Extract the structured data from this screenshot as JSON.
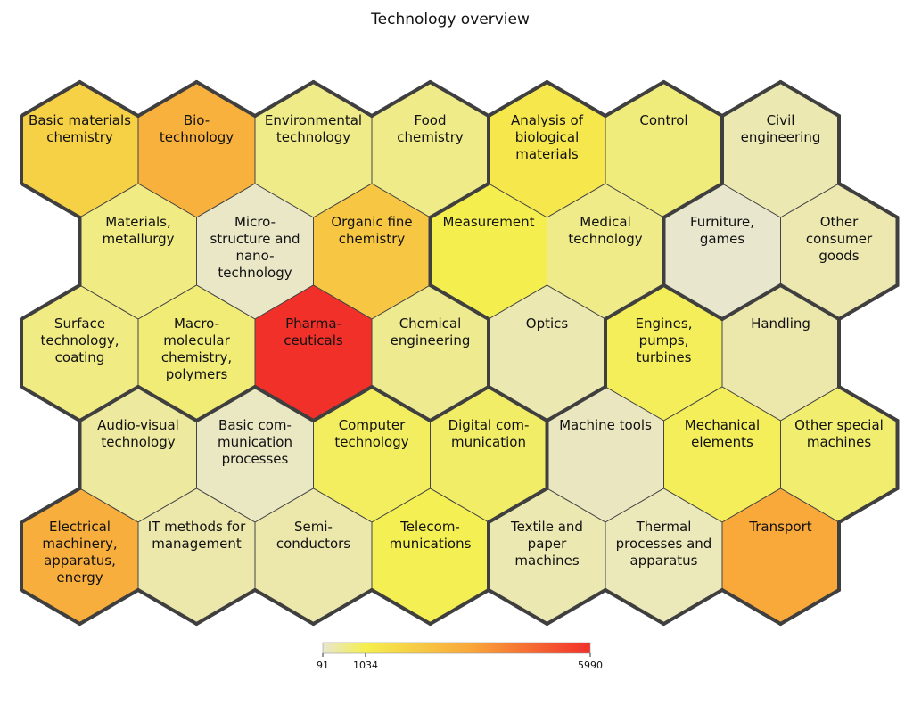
{
  "chart_data": {
    "type": "heatmap",
    "title": "Technology overview",
    "color_scale": {
      "min": 91,
      "max": 5990,
      "ticks": [
        91,
        1034,
        5990
      ],
      "colors": [
        "#e9e6cf",
        "#f4ef4e",
        "#f9a73a",
        "#f2302a"
      ]
    },
    "cells": [
      {
        "label": "Basic materials chemistry",
        "lines": [
          "Basic materials",
          "chemistry"
        ],
        "row": 0,
        "col": 0,
        "value": 2000,
        "group": 1
      },
      {
        "label": "Bio- technology",
        "lines": [
          "Bio-",
          "technology"
        ],
        "row": 0,
        "col": 1,
        "value": 3000,
        "group": 1
      },
      {
        "label": "Environmental technology",
        "lines": [
          "Environmental",
          "technology"
        ],
        "row": 0,
        "col": 2,
        "value": 600,
        "group": 1
      },
      {
        "label": "Food chemistry",
        "lines": [
          "Food",
          "chemistry"
        ],
        "row": 0,
        "col": 3,
        "value": 600,
        "group": 1
      },
      {
        "label": "Analysis of biological materials",
        "lines": [
          "Analysis of",
          "biological",
          "materials"
        ],
        "row": 0,
        "col": 4,
        "value": 1300,
        "group": 2
      },
      {
        "label": "Control",
        "lines": [
          "Control"
        ],
        "row": 0,
        "col": 5,
        "value": 700,
        "group": 2
      },
      {
        "label": "Civil engineering",
        "lines": [
          "Civil",
          "engineering"
        ],
        "row": 0,
        "col": 6,
        "value": 300,
        "group": 3
      },
      {
        "label": "Materials, metallurgy",
        "lines": [
          "Materials,",
          "metallurgy"
        ],
        "row": 1,
        "col": 0,
        "value": 650,
        "group": 1
      },
      {
        "label": "Micro- structure and nano- technology",
        "lines": [
          "Micro-",
          "structure and",
          "nano-",
          "technology"
        ],
        "row": 1,
        "col": 1,
        "value": 150,
        "group": 1
      },
      {
        "label": "Organic fine chemistry",
        "lines": [
          "Organic fine",
          "chemistry"
        ],
        "row": 1,
        "col": 2,
        "value": 2300,
        "group": 1
      },
      {
        "label": "Measurement",
        "lines": [
          "Measurement"
        ],
        "row": 1,
        "col": 3,
        "value": 1034,
        "group": 2
      },
      {
        "label": "Medical technology",
        "lines": [
          "Medical",
          "technology"
        ],
        "row": 1,
        "col": 4,
        "value": 600,
        "group": 2
      },
      {
        "label": "Furniture, games",
        "lines": [
          "Furniture,",
          "games"
        ],
        "row": 1,
        "col": 5,
        "value": 100,
        "group": 3
      },
      {
        "label": "Other consumer goods",
        "lines": [
          "Other",
          "consumer",
          "goods"
        ],
        "row": 1,
        "col": 6,
        "value": 320,
        "group": 3
      },
      {
        "label": "Surface technology, coating",
        "lines": [
          "Surface",
          "technology,",
          "coating"
        ],
        "row": 2,
        "col": 0,
        "value": 650,
        "group": 1
      },
      {
        "label": "Macro- molecular chemistry, polymers",
        "lines": [
          "Macro-",
          "molecular",
          "chemistry,",
          "polymers"
        ],
        "row": 2,
        "col": 1,
        "value": 750,
        "group": 1
      },
      {
        "label": "Pharma- ceuticals",
        "lines": [
          "Pharma-",
          "ceuticals"
        ],
        "row": 2,
        "col": 2,
        "value": 5990,
        "group": 1
      },
      {
        "label": "Chemical engineering",
        "lines": [
          "Chemical",
          "engineering"
        ],
        "row": 2,
        "col": 3,
        "value": 550,
        "group": 1
      },
      {
        "label": "Optics",
        "lines": [
          "Optics"
        ],
        "row": 2,
        "col": 4,
        "value": 300,
        "group": 2
      },
      {
        "label": "Engines, pumps, turbines",
        "lines": [
          "Engines,",
          "pumps,",
          "turbines"
        ],
        "row": 2,
        "col": 5,
        "value": 950,
        "group": 4
      },
      {
        "label": "Handling",
        "lines": [
          "Handling"
        ],
        "row": 2,
        "col": 6,
        "value": 350,
        "group": 4
      },
      {
        "label": "Audio-visual technology",
        "lines": [
          "Audio-visual",
          "technology"
        ],
        "row": 3,
        "col": 0,
        "value": 450,
        "group": 5
      },
      {
        "label": "Basic com- munication processes",
        "lines": [
          "Basic com-",
          "munication",
          "processes"
        ],
        "row": 3,
        "col": 1,
        "value": 180,
        "group": 5
      },
      {
        "label": "Computer technology",
        "lines": [
          "Computer",
          "technology"
        ],
        "row": 3,
        "col": 2,
        "value": 900,
        "group": 5
      },
      {
        "label": "Digital com- munication",
        "lines": [
          "Digital com-",
          "munication"
        ],
        "row": 3,
        "col": 3,
        "value": 850,
        "group": 5
      },
      {
        "label": "Machine tools",
        "lines": [
          "Machine tools"
        ],
        "row": 3,
        "col": 4,
        "value": 200,
        "group": 4
      },
      {
        "label": "Mechanical elements",
        "lines": [
          "Mechanical",
          "elements"
        ],
        "row": 3,
        "col": 5,
        "value": 950,
        "group": 4
      },
      {
        "label": "Other special machines",
        "lines": [
          "Other special",
          "machines"
        ],
        "row": 3,
        "col": 6,
        "value": 800,
        "group": 4
      },
      {
        "label": "Electrical machinery, apparatus, energy",
        "lines": [
          "Electrical",
          "machinery,",
          "apparatus,",
          "energy"
        ],
        "row": 4,
        "col": 0,
        "value": 3100,
        "group": 5
      },
      {
        "label": "IT methods for management",
        "lines": [
          "IT methods for",
          "management"
        ],
        "row": 4,
        "col": 1,
        "value": 350,
        "group": 5
      },
      {
        "label": "Semi- conductors",
        "lines": [
          "Semi-",
          "conductors"
        ],
        "row": 4,
        "col": 2,
        "value": 350,
        "group": 5
      },
      {
        "label": "Telecom- munications",
        "lines": [
          "Telecom-",
          "munications"
        ],
        "row": 4,
        "col": 3,
        "value": 1000,
        "group": 5
      },
      {
        "label": "Textile and paper machines",
        "lines": [
          "Textile and",
          "paper",
          "machines"
        ],
        "row": 4,
        "col": 4,
        "value": 300,
        "group": 4
      },
      {
        "label": "Thermal processes and apparatus",
        "lines": [
          "Thermal",
          "processes and",
          "apparatus"
        ],
        "row": 4,
        "col": 5,
        "value": 250,
        "group": 4
      },
      {
        "label": "Transport",
        "lines": [
          "Transport"
        ],
        "row": 4,
        "col": 6,
        "value": 3300,
        "group": 4
      }
    ]
  }
}
